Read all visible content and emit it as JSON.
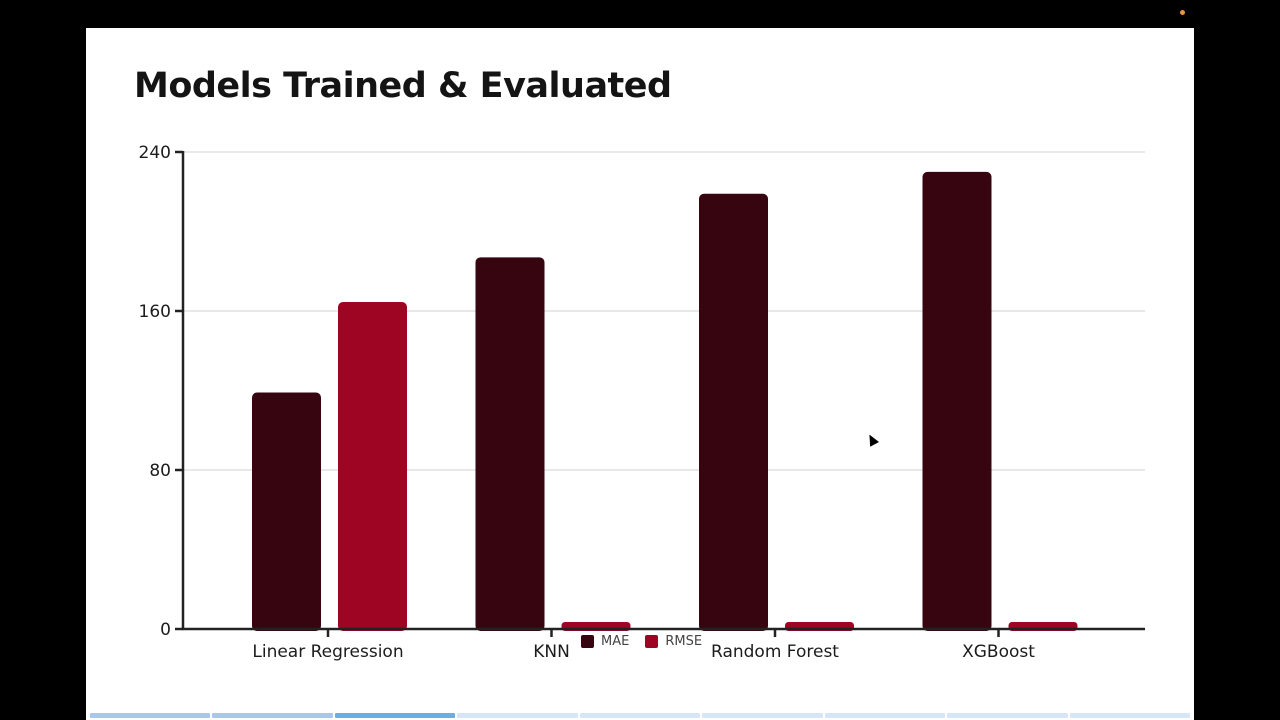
{
  "slide": {
    "title": "Models Trained & Evaluated"
  },
  "chart_data": {
    "type": "bar",
    "title": "Models Trained & Evaluated",
    "xlabel": "",
    "ylabel": "",
    "categories": [
      "Linear Regression",
      "KNN",
      "Random Forest",
      "XGBoost"
    ],
    "series": [
      {
        "name": "MAE",
        "color": "#360510",
        "values": [
          119,
          187,
          219,
          230
        ]
      },
      {
        "name": "RMSE",
        "color": "#9e0523",
        "values": [
          164.5,
          3.5,
          3.5,
          3.5
        ]
      }
    ],
    "ylim": [
      0,
      240
    ],
    "yticks": [
      0,
      80,
      160,
      240
    ],
    "grid": true,
    "legend_position": "bottom-center"
  },
  "legend": {
    "items": [
      {
        "label": "MAE",
        "color": "#360510"
      },
      {
        "label": "RMSE",
        "color": "#9e0523"
      }
    ]
  },
  "progress": {
    "total": 9,
    "current": 3,
    "colors": {
      "done": "#a9c7ec",
      "active": "#6aaee6",
      "todo": "#d6e6f6"
    }
  },
  "indicator": {
    "color": "#e8953a"
  }
}
